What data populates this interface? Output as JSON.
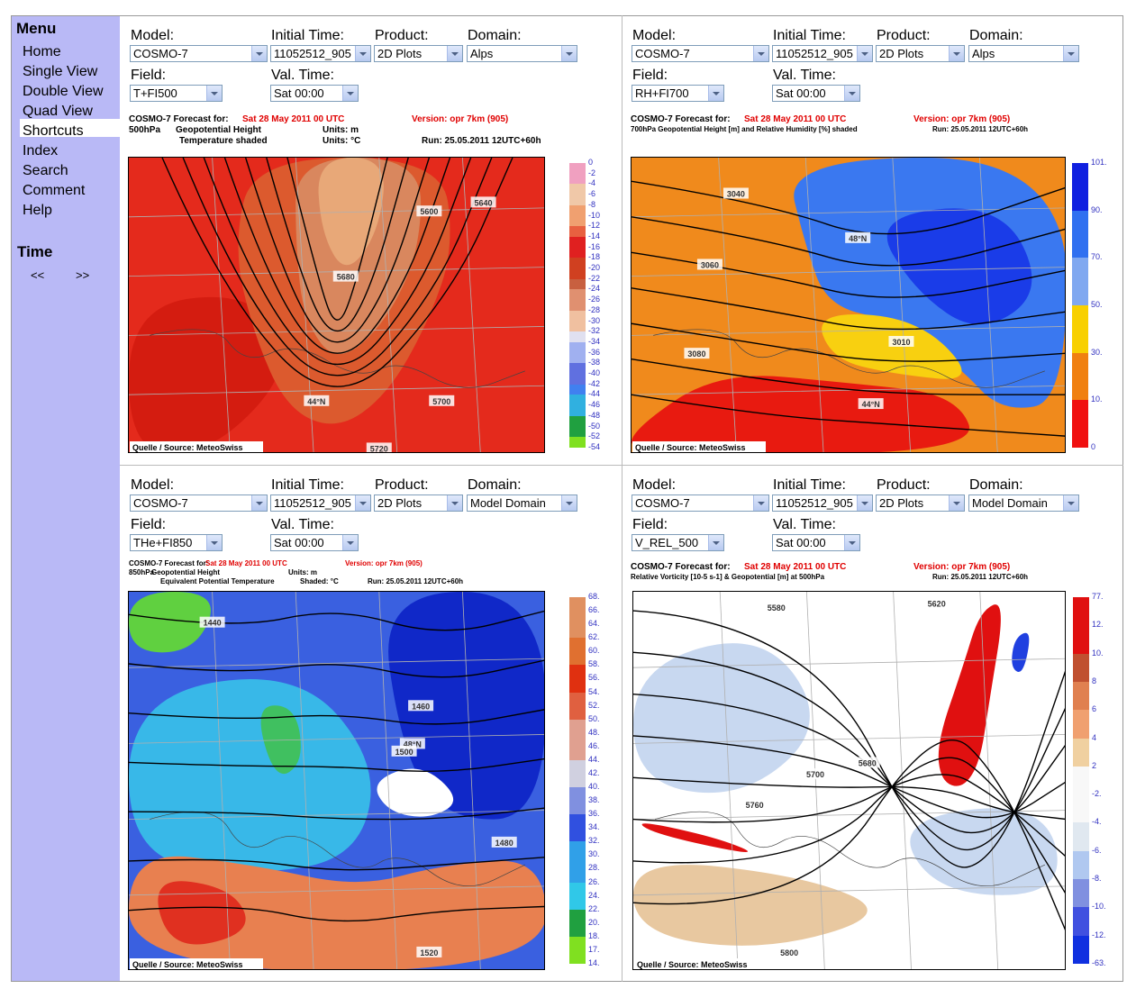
{
  "menu": {
    "title": "Menu",
    "items": [
      "Home",
      "Single View",
      "Double View",
      "Quad View",
      "Shortcuts",
      "Index",
      "Search",
      "Comment",
      "Help"
    ]
  },
  "time": {
    "title": "Time",
    "prev": "<<",
    "next": ">>"
  },
  "form_labels": {
    "model": "Model:",
    "initial_time": "Initial Time:",
    "product": "Product:",
    "domain": "Domain:",
    "field": "Field:",
    "val_time": "Val. Time:"
  },
  "panels": [
    {
      "model": "COSMO-7",
      "initial_time": "11052512_905",
      "product": "2D Plots",
      "domain": "Alps",
      "field": "T+FI500",
      "val_time": "Sat 00:00",
      "header": {
        "title": "COSMO-7 Forecast for:",
        "date": "Sat 28 May 2011 00 UTC",
        "version": "Version: opr 7km (905)",
        "lines": [
          [
            "500hPa",
            "Geopotential Height",
            "Units: m"
          ],
          [
            "Temperature shaded",
            "Units: °C"
          ]
        ],
        "run": "Run: 25.05.2011 12UTC+60h"
      },
      "colorbar": [
        "0",
        "-2",
        "-4",
        "-6",
        "-8",
        "-10",
        "-12",
        "-14",
        "-16",
        "-18",
        "-20",
        "-22",
        "-24",
        "-26",
        "-28",
        "-30",
        "-32",
        "-34",
        "-36",
        "-38",
        "-40",
        "-42",
        "-44",
        "-46",
        "-48",
        "-50",
        "-52",
        "-54"
      ],
      "map_labels": [
        "44°N",
        "5600",
        "5640",
        "5680",
        "5700",
        "5720"
      ],
      "source": "Quelle / Source: MeteoSwiss"
    },
    {
      "model": "COSMO-7",
      "initial_time": "11052512_905",
      "product": "2D Plots",
      "domain": "Alps",
      "field": "RH+FI700",
      "val_time": "Sat 00:00",
      "header": {
        "title": "COSMO-7 Forecast for:",
        "date": "Sat 28 May 2011 00 UTC",
        "version": "Version: opr 7km (905)",
        "lines": [
          [
            "700hPa Geopotential Height [m] and Relative Humidity [%] shaded"
          ]
        ],
        "run": "Run: 25.05.2011 12UTC+60h"
      },
      "colorbar": [
        "101.",
        "90.",
        "70.",
        "50.",
        "30.",
        "10.",
        "0"
      ],
      "map_labels": [
        "48°N",
        "44°N",
        "3040",
        "3060",
        "3080",
        "3010"
      ],
      "source": "Quelle / Source: MeteoSwiss"
    },
    {
      "model": "COSMO-7",
      "initial_time": "11052512_905",
      "product": "2D Plots",
      "domain": "Model Domain",
      "field": "THe+FI850",
      "val_time": "Sat 00:00",
      "header": {
        "title": "COSMO-7 Forecast for:",
        "date": "Sat 28 May 2011 00 UTC",
        "version": "Version: opr 7km (905)",
        "lines": [
          [
            "850hPa",
            "Geopotential Height",
            "Units: m"
          ],
          [
            "Equivalent Potential Temperature",
            "Shaded: °C"
          ]
        ],
        "run": "Run: 25.05.2011 12UTC+60h"
      },
      "colorbar": [
        "68.",
        "66.",
        "64.",
        "62.",
        "60.",
        "58.",
        "56.",
        "54.",
        "52.",
        "50.",
        "48.",
        "46.",
        "44.",
        "42.",
        "40.",
        "38.",
        "36.",
        "34.",
        "32.",
        "30.",
        "28.",
        "26.",
        "24.",
        "22.",
        "20.",
        "18.",
        "17.",
        "14."
      ],
      "map_labels": [
        "48°N",
        "1440",
        "1460",
        "1480",
        "1500",
        "1520"
      ],
      "source": "Quelle / Source: MeteoSwiss"
    },
    {
      "model": "COSMO-7",
      "initial_time": "11052512_905",
      "product": "2D Plots",
      "domain": "Model Domain",
      "field": "V_REL_500",
      "val_time": "Sat 00:00",
      "header": {
        "title": "COSMO-7 Forecast for:",
        "date": "Sat 28 May 2011 00 UTC",
        "version": "Version: opr 7km (905)",
        "lines": [
          [
            "Relative Vorticity [10-5 s-1] & Geopotential [m] at 500hPa"
          ]
        ],
        "run": "Run: 25.05.2011 12UTC+60h"
      },
      "colorbar": [
        "77.",
        "12.",
        "10.",
        "8",
        "6",
        "4",
        "2",
        "-2.",
        "-4.",
        "-6.",
        "-8.",
        "-10.",
        "-12.",
        "-63."
      ],
      "map_labels": [
        "5580",
        "5620",
        "5680",
        "5700",
        "5760",
        "5800"
      ],
      "source": "Quelle / Source: MeteoSwiss"
    }
  ]
}
